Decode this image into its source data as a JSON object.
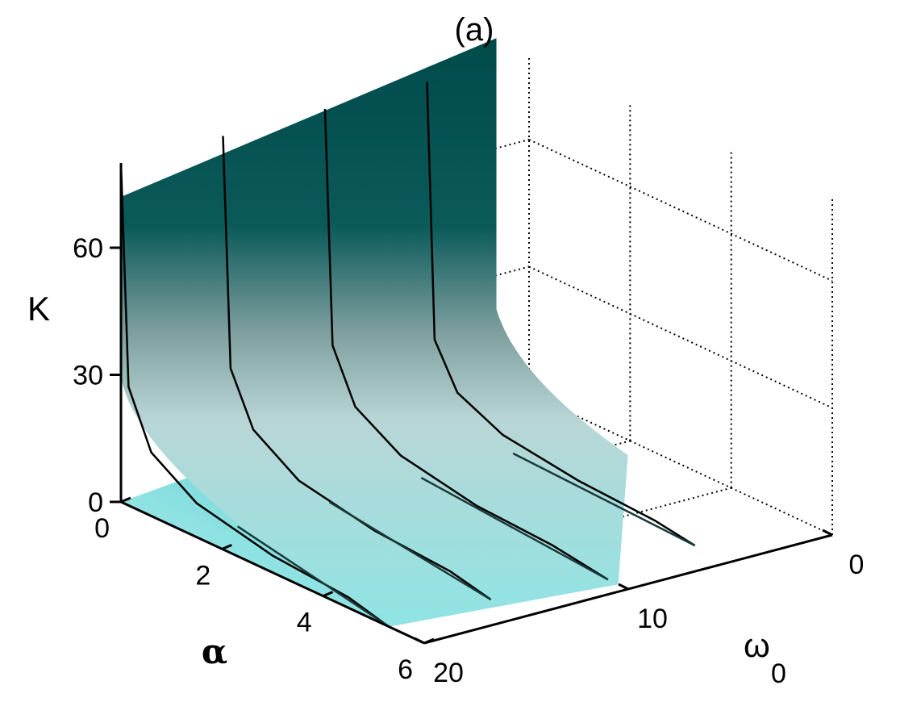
{
  "chart_data": {
    "type": "surface",
    "title": "(a)",
    "xlabel": "α",
    "ylabel": "ω",
    "ylabel_subscript": "0",
    "zlabel": "K",
    "xlim": [
      0,
      6
    ],
    "ylim": [
      0,
      20
    ],
    "zlim": [
      0,
      80
    ],
    "x_ticks": [
      "0",
      "2",
      "4",
      "6"
    ],
    "y_ticks": [
      "0",
      "10",
      "20"
    ],
    "z_ticks": [
      "0",
      "30",
      "60"
    ],
    "grid": true,
    "colors": {
      "surface_low": "#b4f0f0",
      "surface_mid": "#6fd8d8",
      "surface_high": "#004848",
      "curves": "#000000",
      "grid": "#000000"
    },
    "omega0_cross_sections": [
      {
        "omega0": 20,
        "curve": [
          [
            0,
            80
          ],
          [
            0.15,
            28
          ],
          [
            0.6,
            15
          ],
          [
            1.5,
            8
          ],
          [
            3,
            4
          ],
          [
            4.5,
            2.5
          ],
          [
            5.3,
            0
          ]
        ]
      },
      {
        "omega0": 15,
        "curve": [
          [
            0,
            80
          ],
          [
            0.15,
            26
          ],
          [
            0.6,
            14
          ],
          [
            1.5,
            7
          ],
          [
            3,
            3.5
          ],
          [
            4.5,
            2.2
          ],
          [
            5.3,
            0
          ]
        ]
      },
      {
        "omega0": 10,
        "curve": [
          [
            0,
            80
          ],
          [
            0.15,
            25
          ],
          [
            0.6,
            13
          ],
          [
            1.5,
            6.5
          ],
          [
            3,
            3
          ],
          [
            4.5,
            2
          ],
          [
            5.6,
            0
          ]
        ]
      },
      {
        "omega0": 5,
        "curve": [
          [
            0,
            80
          ],
          [
            0.15,
            20
          ],
          [
            0.6,
            10
          ],
          [
            1.5,
            5
          ],
          [
            3,
            2.5
          ],
          [
            4.5,
            1.5
          ],
          [
            5.3,
            0
          ]
        ]
      }
    ]
  }
}
